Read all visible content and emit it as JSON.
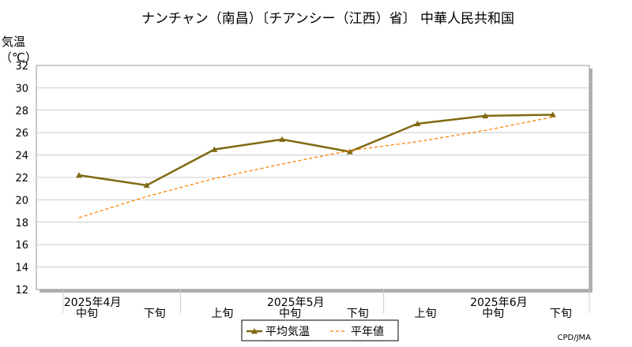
{
  "chart_data": {
    "type": "line",
    "title": "ナンチャン（南昌）〔チアンシー（江西）省〕 中華人民共和国",
    "ylabel_line1": "気温",
    "ylabel_line2": "（℃）",
    "ylim": [
      12,
      32
    ],
    "yticks": [
      12,
      14,
      16,
      18,
      20,
      22,
      24,
      26,
      28,
      30,
      32
    ],
    "grid": true,
    "x": [
      "2025年4月中旬",
      "2025年4月下旬",
      "2025年5月上旬",
      "2025年5月中旬",
      "2025年5月下旬",
      "2025年6月上旬",
      "2025年6月中旬",
      "2025年6月下旬"
    ],
    "xtick_labels": [
      "中旬",
      "下旬",
      "上旬",
      "中旬",
      "下旬",
      "上旬",
      "中旬",
      "下旬"
    ],
    "month_labels": [
      "2025年4月",
      "2025年5月",
      "2025年6月"
    ],
    "series": [
      {
        "name": "平均気温",
        "color": "#7f6a12",
        "style": "solid-triangle",
        "values": [
          22.2,
          21.3,
          24.5,
          25.4,
          24.3,
          26.8,
          27.5,
          27.6
        ]
      },
      {
        "name": "平年値",
        "color": "#ff7f00",
        "style": "dashed",
        "values": [
          18.4,
          20.3,
          21.9,
          23.2,
          24.4,
          25.2,
          26.2,
          27.4
        ]
      }
    ],
    "legend_position": "bottom-center",
    "credit": "CPD/JMA"
  }
}
